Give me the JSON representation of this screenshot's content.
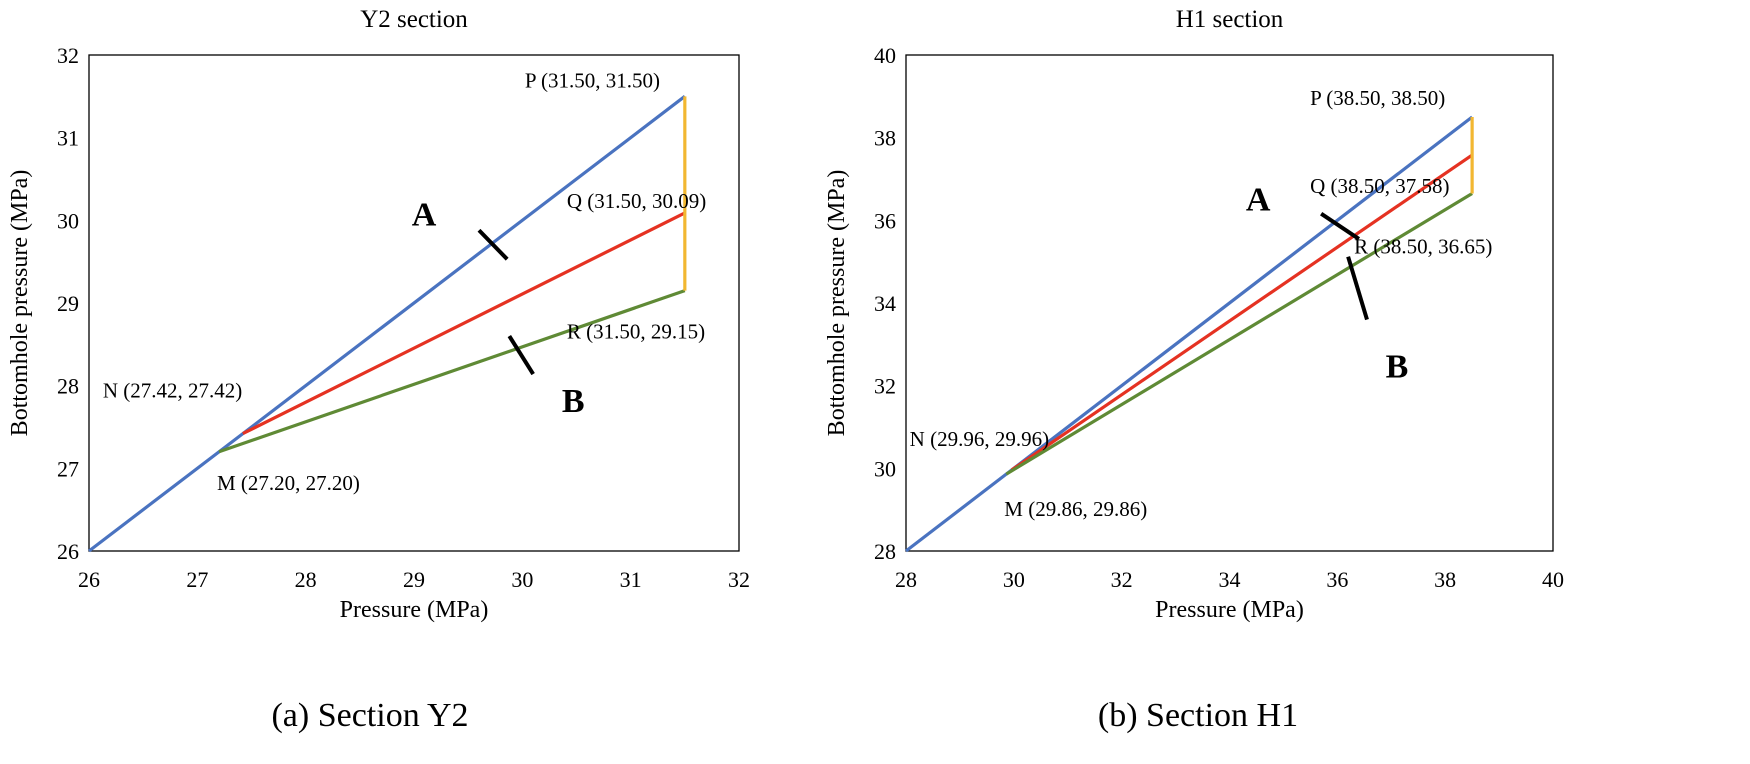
{
  "colors": {
    "line_A": "#4a73c0",
    "line_mid": "#e53222",
    "line_B": "#5f8a35",
    "vertical": "#f2b731",
    "axis": "#000000"
  },
  "captions": {
    "a": "(a) Section Y2",
    "b": "(b) Section H1"
  },
  "chart_data": [
    {
      "type": "line",
      "title": "Y2 section",
      "xlabel": "Pressure (MPa)",
      "ylabel": "Bottomhole pressure (MPa)",
      "xlim": [
        26,
        32
      ],
      "ylim": [
        26,
        32
      ],
      "xticks": [
        26,
        27,
        28,
        29,
        30,
        31,
        32
      ],
      "yticks": [
        26,
        27,
        28,
        29,
        30,
        31,
        32
      ],
      "grid": false,
      "series": [
        {
          "name": "A",
          "color": "line_A",
          "points": [
            [
              26,
              26
            ],
            [
              31.5,
              31.5
            ]
          ]
        },
        {
          "name": "N-Q",
          "color": "line_mid",
          "points": [
            [
              27.42,
              27.42
            ],
            [
              31.5,
              30.09
            ]
          ]
        },
        {
          "name": "B",
          "color": "line_B",
          "points": [
            [
              27.2,
              27.2
            ],
            [
              31.5,
              29.15
            ]
          ]
        },
        {
          "name": "P-R",
          "color": "vertical",
          "points": [
            [
              31.5,
              31.5
            ],
            [
              31.5,
              29.15
            ]
          ]
        }
      ],
      "points": [
        {
          "label": "P (31.50, 31.50)",
          "x": 31.5,
          "y": 31.5
        },
        {
          "label": "Q (31.50, 30.09)",
          "x": 31.5,
          "y": 30.09
        },
        {
          "label": "R (31.50, 29.15)",
          "x": 31.5,
          "y": 29.15
        },
        {
          "label": "N (27.42, 27.42)",
          "x": 27.42,
          "y": 27.42
        },
        {
          "label": "M (27.20, 27.20)",
          "x": 27.2,
          "y": 27.2
        }
      ],
      "curve_labels": [
        {
          "text": "A",
          "tick": [
            [
              29.6,
              29.88
            ],
            [
              29.86,
              29.53
            ]
          ]
        },
        {
          "text": "B",
          "tick": [
            [
              29.88,
              28.6
            ],
            [
              30.1,
              28.14
            ]
          ]
        }
      ]
    },
    {
      "type": "line",
      "title": "H1 section",
      "xlabel": "Pressure (MPa)",
      "ylabel": "Bottomhole pressure (MPa)",
      "xlim": [
        28,
        40
      ],
      "ylim": [
        28,
        40
      ],
      "xticks": [
        28,
        30,
        32,
        34,
        36,
        38,
        40
      ],
      "yticks": [
        28,
        30,
        32,
        34,
        36,
        38,
        40
      ],
      "grid": false,
      "series": [
        {
          "name": "A",
          "color": "line_A",
          "points": [
            [
              28,
              28
            ],
            [
              38.5,
              38.5
            ]
          ]
        },
        {
          "name": "N-Q",
          "color": "line_mid",
          "points": [
            [
              29.96,
              29.96
            ],
            [
              38.5,
              37.58
            ]
          ]
        },
        {
          "name": "B",
          "color": "line_B",
          "points": [
            [
              29.86,
              29.86
            ],
            [
              38.5,
              36.65
            ]
          ]
        },
        {
          "name": "P-R",
          "color": "vertical",
          "points": [
            [
              38.5,
              38.5
            ],
            [
              38.5,
              36.65
            ]
          ]
        }
      ],
      "points": [
        {
          "label": "P (38.50, 38.50)",
          "x": 38.5,
          "y": 38.5
        },
        {
          "label": "Q (38.50, 37.58)",
          "x": 38.5,
          "y": 37.58
        },
        {
          "label": "R (38.50, 36.65)",
          "x": 38.5,
          "y": 36.65
        },
        {
          "label": "N (29.96, 29.96)",
          "x": 29.96,
          "y": 29.96
        },
        {
          "label": "M (29.86, 29.86)",
          "x": 29.86,
          "y": 29.86
        }
      ],
      "curve_labels": [
        {
          "text": "A",
          "tick": [
            [
              35.7,
              36.16
            ],
            [
              36.4,
              35.55
            ]
          ]
        },
        {
          "text": "B",
          "tick": [
            [
              36.2,
              35.12
            ],
            [
              36.55,
              33.6
            ]
          ]
        }
      ]
    }
  ]
}
